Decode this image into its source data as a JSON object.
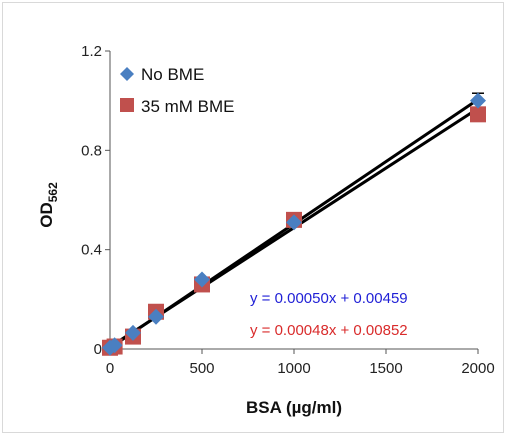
{
  "chart_data": {
    "type": "scatter",
    "xlabel": "BSA (µg/ml)",
    "ylabel_main": "OD",
    "ylabel_sub": "562",
    "xlim": [
      0,
      2000
    ],
    "ylim": [
      0,
      1.2
    ],
    "x_ticks": [
      0,
      500,
      1000,
      1500,
      2000
    ],
    "x_tick_labels": [
      "0",
      "500",
      "1000",
      "1500",
      "2000"
    ],
    "y_ticks": [
      0,
      0.4,
      0.8,
      1.2
    ],
    "y_tick_labels": [
      "0",
      "0.4",
      "0.8",
      "1.2"
    ],
    "grid": false,
    "legend_position": "top-left",
    "series": [
      {
        "name": "No BME",
        "marker": "diamond",
        "color": "#4a7fc1",
        "x": [
          0,
          25,
          125,
          250,
          500,
          1000,
          2000
        ],
        "y": [
          0.005,
          0.015,
          0.065,
          0.13,
          0.28,
          0.51,
          1.0
        ],
        "error_top": [
          null,
          null,
          null,
          null,
          null,
          null,
          1.03
        ],
        "fit": {
          "slope": 0.0005,
          "intercept": 0.00459,
          "equation": "y = 0.00050x + 0.00459",
          "color": "#1f1fd6"
        }
      },
      {
        "name": "35 mM BME",
        "marker": "square",
        "color": "#c0504d",
        "x": [
          0,
          25,
          125,
          250,
          500,
          1000,
          2000
        ],
        "y": [
          0.005,
          0.01,
          0.05,
          0.15,
          0.26,
          0.52,
          0.945
        ],
        "fit": {
          "slope": 0.00048,
          "intercept": 0.00852,
          "equation": "y = 0.00048x + 0.00852",
          "color": "#d92b2b"
        }
      }
    ]
  }
}
